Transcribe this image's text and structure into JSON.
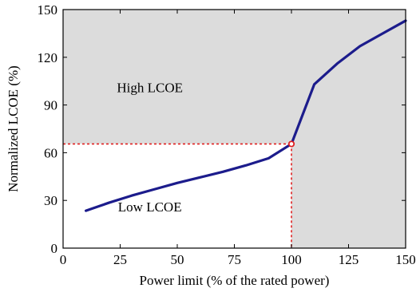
{
  "chart_data": {
    "type": "line",
    "title": "",
    "xlabel": "Power limit (% of the rated power)",
    "ylabel": "Normalized LCOE (%)",
    "xlim": [
      0,
      150
    ],
    "ylim": [
      0,
      150
    ],
    "xticks": [
      0,
      25,
      50,
      75,
      100,
      125,
      150
    ],
    "yticks": [
      0,
      30,
      60,
      90,
      120,
      150
    ],
    "xtick_labels": [
      "0",
      "25",
      "50",
      "75",
      "100",
      "125",
      "150"
    ],
    "ytick_labels": [
      "0",
      "30",
      "60",
      "90",
      "120",
      "150"
    ],
    "grid": false,
    "series": [
      {
        "color": "#1c1c8c",
        "x": [
          10,
          20,
          30,
          40,
          50,
          60,
          70,
          80,
          90,
          100,
          110,
          120,
          130,
          140,
          150
        ],
        "y": [
          23.5,
          28.5,
          33,
          37,
          41,
          44.5,
          48,
          52,
          56.5,
          65.5,
          103,
          116,
          127,
          135,
          143
        ]
      }
    ],
    "marker_point": {
      "x": 100,
      "y": 65.5,
      "color": "#e02020"
    },
    "threshold_guides": {
      "x": 100,
      "y": 65.5,
      "color": "#e02020",
      "style": "dashed"
    },
    "annotations": [
      {
        "text": "High LCOE",
        "x": 38,
        "y": 98
      },
      {
        "text": "Low LCOE",
        "x": 38,
        "y": 23
      }
    ],
    "shading": {
      "color": "#dcdcdc",
      "label_regions": [
        "High LCOE",
        "Low LCOE"
      ]
    }
  }
}
